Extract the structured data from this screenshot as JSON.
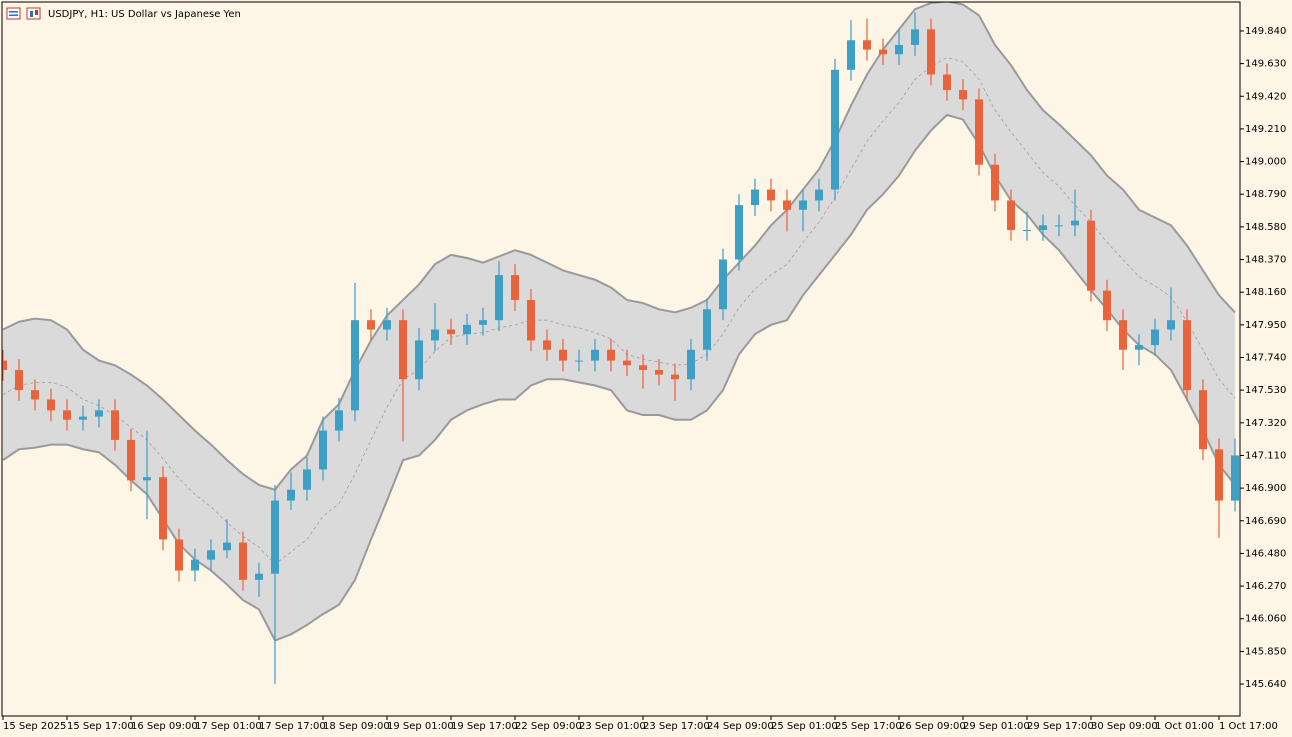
{
  "chart_data": {
    "type": "candlestick",
    "title": "USDJPY, H1:  US Dollar vs Japanese Yen",
    "x": [
      0,
      4,
      8,
      12,
      16,
      20,
      24,
      28,
      32,
      36,
      40,
      44,
      48,
      52,
      56,
      60,
      64,
      68,
      72,
      76,
      80,
      84,
      88,
      92,
      96,
      100,
      104,
      108,
      112,
      116,
      120,
      124,
      128,
      132,
      136,
      140,
      144,
      148,
      152,
      156,
      160,
      164,
      168,
      172,
      176,
      180,
      184,
      188,
      192,
      196,
      200,
      204,
      208,
      212,
      216,
      220,
      224,
      228,
      232,
      236,
      240,
      244,
      248,
      252,
      256,
      260,
      264,
      268,
      272,
      276,
      280,
      284,
      288,
      292,
      296,
      300,
      304,
      308
    ],
    "open": [
      147.72,
      147.66,
      147.53,
      147.47,
      147.4,
      147.34,
      147.36,
      147.4,
      147.21,
      146.95,
      146.97,
      146.57,
      146.37,
      146.44,
      146.5,
      146.55,
      146.31,
      146.35,
      146.82,
      146.89,
      147.02,
      147.27,
      147.4,
      147.98,
      147.92,
      147.98,
      147.6,
      147.85,
      147.92,
      147.89,
      147.95,
      147.98,
      148.27,
      148.11,
      147.85,
      147.79,
      147.72,
      147.72,
      147.79,
      147.72,
      147.69,
      147.66,
      147.63,
      147.6,
      147.79,
      148.05,
      148.37,
      148.72,
      148.82,
      148.75,
      148.69,
      148.75,
      148.82,
      149.59,
      149.78,
      149.72,
      149.69,
      149.75,
      149.85,
      149.56,
      149.46,
      149.4,
      148.98,
      148.75,
      148.56,
      148.56,
      148.59,
      148.59,
      148.62,
      148.17,
      147.98,
      147.79,
      147.82,
      147.92,
      147.98,
      147.53,
      147.15,
      146.82
    ],
    "high": [
      147.79,
      147.73,
      147.6,
      147.54,
      147.47,
      147.43,
      147.47,
      147.47,
      147.28,
      147.27,
      147.04,
      146.64,
      146.51,
      146.57,
      146.7,
      146.62,
      146.42,
      146.92,
      147.0,
      147.1,
      147.36,
      147.48,
      148.22,
      148.05,
      148.06,
      148.05,
      147.93,
      148.09,
      147.99,
      148.02,
      148.06,
      148.36,
      148.34,
      148.18,
      147.92,
      147.86,
      147.79,
      147.86,
      147.86,
      147.79,
      147.76,
      147.73,
      147.7,
      147.86,
      148.12,
      148.44,
      148.79,
      148.89,
      148.89,
      148.82,
      148.82,
      148.89,
      149.66,
      149.91,
      149.92,
      149.79,
      149.85,
      149.96,
      149.92,
      149.63,
      149.53,
      149.47,
      149.05,
      148.82,
      148.68,
      148.66,
      148.66,
      148.82,
      148.69,
      148.24,
      148.05,
      147.89,
      147.99,
      148.19,
      148.05,
      147.6,
      147.22,
      147.22
    ],
    "low": [
      147.59,
      147.46,
      147.4,
      147.33,
      147.27,
      147.27,
      147.29,
      147.14,
      146.88,
      146.7,
      146.5,
      146.3,
      146.3,
      146.37,
      146.45,
      146.24,
      146.2,
      145.64,
      146.76,
      146.82,
      146.95,
      147.2,
      147.33,
      147.85,
      147.85,
      147.2,
      147.53,
      147.78,
      147.82,
      147.82,
      147.88,
      147.91,
      148.04,
      147.78,
      147.72,
      147.65,
      147.65,
      147.65,
      147.65,
      147.62,
      147.54,
      147.56,
      147.46,
      147.53,
      147.72,
      147.98,
      148.3,
      148.65,
      148.68,
      148.55,
      148.55,
      148.68,
      148.75,
      149.52,
      149.65,
      149.62,
      149.62,
      149.68,
      149.49,
      149.39,
      149.33,
      148.91,
      148.68,
      148.49,
      148.49,
      148.49,
      148.52,
      148.52,
      148.1,
      147.91,
      147.66,
      147.69,
      147.75,
      147.85,
      147.46,
      147.08,
      146.58,
      146.75
    ],
    "close": [
      147.66,
      147.53,
      147.47,
      147.4,
      147.34,
      147.36,
      147.4,
      147.21,
      146.95,
      146.97,
      146.57,
      146.37,
      146.44,
      146.5,
      146.55,
      146.31,
      146.35,
      146.82,
      146.89,
      147.02,
      147.27,
      147.4,
      147.98,
      147.92,
      147.98,
      147.6,
      147.85,
      147.92,
      147.89,
      147.95,
      147.98,
      148.27,
      148.11,
      147.85,
      147.79,
      147.72,
      147.72,
      147.79,
      147.72,
      147.69,
      147.66,
      147.63,
      147.6,
      147.79,
      148.05,
      148.37,
      148.72,
      148.82,
      148.75,
      148.69,
      148.75,
      148.82,
      149.59,
      149.78,
      149.72,
      149.69,
      149.75,
      149.85,
      149.56,
      149.46,
      149.4,
      148.98,
      148.75,
      148.56,
      148.56,
      148.59,
      148.59,
      148.62,
      148.17,
      147.98,
      147.79,
      147.82,
      147.92,
      147.98,
      147.53,
      147.15,
      146.82,
      147.11
    ],
    "up_color": "#3d9fc4",
    "down_color": "#e8643a",
    "bands": {
      "upper": [
        147.92,
        147.97,
        147.99,
        147.98,
        147.92,
        147.79,
        147.72,
        147.69,
        147.63,
        147.56,
        147.47,
        147.37,
        147.27,
        147.18,
        147.08,
        146.99,
        146.92,
        146.89,
        147.02,
        147.11,
        147.34,
        147.44,
        147.66,
        147.85,
        148.01,
        148.11,
        148.21,
        148.34,
        148.4,
        148.38,
        148.35,
        148.39,
        148.43,
        148.4,
        148.35,
        148.3,
        148.27,
        148.24,
        148.19,
        148.11,
        148.09,
        148.05,
        148.03,
        148.06,
        148.11,
        148.24,
        148.35,
        148.46,
        148.59,
        148.69,
        148.82,
        148.95,
        149.14,
        149.36,
        149.56,
        149.72,
        149.85,
        149.98,
        150.02,
        150.03,
        150.01,
        149.94,
        149.75,
        149.62,
        149.46,
        149.33,
        149.24,
        149.14,
        149.04,
        148.91,
        148.82,
        148.69,
        148.64,
        148.59,
        148.46,
        148.3,
        148.14,
        148.03
      ],
      "middle": [
        147.5,
        147.56,
        147.58,
        147.58,
        147.55,
        147.47,
        147.43,
        147.37,
        147.29,
        147.21,
        147.09,
        146.96,
        146.86,
        146.78,
        146.68,
        146.59,
        146.52,
        146.41,
        146.49,
        146.57,
        146.72,
        146.8,
        146.99,
        147.21,
        147.42,
        147.6,
        147.66,
        147.78,
        147.87,
        147.89,
        147.9,
        147.93,
        147.95,
        147.98,
        147.98,
        147.95,
        147.93,
        147.9,
        147.86,
        147.76,
        147.73,
        147.71,
        147.69,
        147.7,
        147.76,
        147.89,
        148.06,
        148.18,
        148.27,
        148.34,
        148.48,
        148.61,
        148.77,
        148.95,
        149.13,
        149.26,
        149.38,
        149.53,
        149.61,
        149.67,
        149.64,
        149.53,
        149.33,
        149.19,
        149.06,
        148.93,
        148.84,
        148.72,
        148.61,
        148.48,
        148.37,
        148.26,
        148.2,
        148.13,
        147.97,
        147.79,
        147.6,
        147.48
      ],
      "lower": [
        147.08,
        147.15,
        147.16,
        147.18,
        147.18,
        147.15,
        147.13,
        147.05,
        146.95,
        146.86,
        146.7,
        146.54,
        146.44,
        146.37,
        146.28,
        146.18,
        146.12,
        145.92,
        145.96,
        146.02,
        146.09,
        146.15,
        146.31,
        146.57,
        146.82,
        147.08,
        147.11,
        147.21,
        147.34,
        147.4,
        147.44,
        147.47,
        147.47,
        147.56,
        147.6,
        147.6,
        147.58,
        147.56,
        147.53,
        147.4,
        147.37,
        147.37,
        147.34,
        147.34,
        147.4,
        147.53,
        147.76,
        147.89,
        147.95,
        147.98,
        148.14,
        148.27,
        148.4,
        148.53,
        148.69,
        148.79,
        148.91,
        149.07,
        149.2,
        149.3,
        149.27,
        149.11,
        148.91,
        148.75,
        148.66,
        148.53,
        148.43,
        148.3,
        148.17,
        148.05,
        147.92,
        147.82,
        147.76,
        147.66,
        147.47,
        147.27,
        147.05,
        146.92
      ],
      "line_color": "#9a9a9a",
      "fill": "#dadada"
    },
    "xlim": [
      -0.75,
      309.25
    ],
    "xticks": [
      {
        "value": 0,
        "label": "15 Sep 2025"
      },
      {
        "value": 16,
        "label": "15 Sep 17:00"
      },
      {
        "value": 32,
        "label": "16 Sep 09:00"
      },
      {
        "value": 48,
        "label": "17 Sep 01:00"
      },
      {
        "value": 64,
        "label": "17 Sep 17:00"
      },
      {
        "value": 80,
        "label": "18 Sep 09:00"
      },
      {
        "value": 96,
        "label": "19 Sep 01:00"
      },
      {
        "value": 112,
        "label": "19 Sep 17:00"
      },
      {
        "value": 128,
        "label": "22 Sep 09:00"
      },
      {
        "value": 144,
        "label": "23 Sep 01:00"
      },
      {
        "value": 160,
        "label": "23 Sep 17:00"
      },
      {
        "value": 176,
        "label": "24 Sep 09:00"
      },
      {
        "value": 192,
        "label": "25 Sep 01:00"
      },
      {
        "value": 208,
        "label": "25 Sep 17:00"
      },
      {
        "value": 224,
        "label": "26 Sep 09:00"
      },
      {
        "value": 240,
        "label": "29 Sep 01:00"
      },
      {
        "value": 256,
        "label": "29 Sep 17:00"
      },
      {
        "value": 272,
        "label": "30 Sep 09:00"
      },
      {
        "value": 288,
        "label": "1 Oct 01:00"
      },
      {
        "value": 304,
        "label": "1 Oct 17:00"
      }
    ],
    "ylim": [
      145.441,
      150.039
    ],
    "yticks": [
      {
        "value": 149.84,
        "label": "149.840"
      },
      {
        "value": 149.63,
        "label": "149.630"
      },
      {
        "value": 149.42,
        "label": "149.420"
      },
      {
        "value": 149.21,
        "label": "149.210"
      },
      {
        "value": 149.0,
        "label": "149.000"
      },
      {
        "value": 148.79,
        "label": "148.790"
      },
      {
        "value": 148.58,
        "label": "148.580"
      },
      {
        "value": 148.37,
        "label": "148.370"
      },
      {
        "value": 148.16,
        "label": "148.160"
      },
      {
        "value": 147.95,
        "label": "147.950"
      },
      {
        "value": 147.74,
        "label": "147.740"
      },
      {
        "value": 147.53,
        "label": "147.530"
      },
      {
        "value": 147.32,
        "label": "147.320"
      },
      {
        "value": 147.11,
        "label": "147.110"
      },
      {
        "value": 146.9,
        "label": "146.900"
      },
      {
        "value": 146.69,
        "label": "146.690"
      },
      {
        "value": 146.48,
        "label": "146.480"
      },
      {
        "value": 146.27,
        "label": "146.270"
      },
      {
        "value": 146.06,
        "label": "146.060"
      },
      {
        "value": 145.85,
        "label": "145.850"
      },
      {
        "value": 145.64,
        "label": "145.640"
      }
    ]
  }
}
